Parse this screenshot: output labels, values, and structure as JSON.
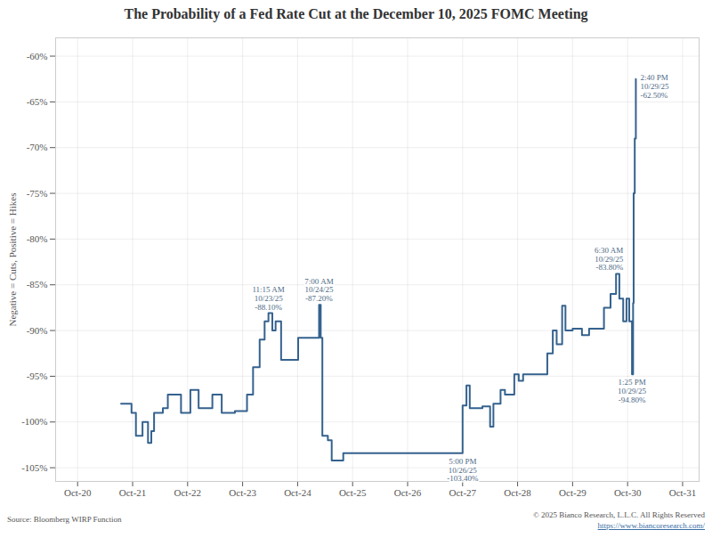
{
  "chart_data": {
    "type": "line",
    "title": "The Probability of a Fed Rate Cut at the December 10, 2025 FOMC Meeting",
    "y_label": "Negative = Cuts, Positive = Hikes",
    "source": "Source: Bloomberg WIRP Function",
    "copyright": "© 2025 Bianco Research, L.L.C. All Rights Reserved",
    "url": "https://www.biancoresearch.com/",
    "color": "#35628e",
    "line_style": "step",
    "grid": true,
    "x": [
      20.79,
      20.98,
      21.06,
      21.18,
      21.28,
      21.34,
      21.39,
      21.55,
      21.64,
      21.88,
      22.05,
      22.2,
      22.45,
      22.62,
      22.86,
      23.08,
      23.19,
      23.31,
      23.4,
      23.47,
      23.54,
      23.6,
      23.7,
      23.93,
      24.01,
      24.34,
      24.39,
      24.42,
      24.45,
      24.55,
      24.62,
      24.83,
      27.0,
      27.07,
      27.13,
      27.36,
      27.5,
      27.56,
      27.69,
      27.77,
      27.94,
      28.02,
      28.1,
      28.48,
      28.54,
      28.64,
      28.71,
      28.81,
      28.87,
      29.0,
      29.17,
      29.3,
      29.49,
      29.57,
      29.69,
      29.79,
      29.85,
      29.92,
      29.98,
      30.03,
      30.08,
      30.1,
      30.11,
      30.13,
      30.15
    ],
    "values": [
      -98,
      -99,
      -101.5,
      -100,
      -102.3,
      -101,
      -99,
      -98.5,
      -97,
      -99,
      -96.5,
      -98.5,
      -97,
      -99,
      -98.8,
      -97,
      -94,
      -91,
      -89,
      -88.1,
      -90,
      -89,
      -93.2,
      -93.2,
      -90.8,
      -90.8,
      -87.2,
      -90.8,
      -101.5,
      -102,
      -104.2,
      -103.4,
      -98.2,
      -96,
      -98.5,
      -98.3,
      -100.5,
      -98,
      -96.5,
      -97,
      -94.8,
      -95.5,
      -94.8,
      -94.8,
      -92.5,
      -90,
      -91.5,
      -87.3,
      -90,
      -89.8,
      -90.5,
      -89.8,
      -89.8,
      -87.5,
      -86,
      -83.8,
      -86.5,
      -89,
      -86.5,
      -89,
      -94.8,
      -87,
      -75,
      -69,
      -62.5
    ],
    "xlim": [
      19.6,
      31.3
    ],
    "xticks": [
      {
        "value": 20,
        "label": "Oct-20"
      },
      {
        "value": 21,
        "label": "Oct-21"
      },
      {
        "value": 22,
        "label": "Oct-22"
      },
      {
        "value": 23,
        "label": "Oct-23"
      },
      {
        "value": 24,
        "label": "Oct-24"
      },
      {
        "value": 25,
        "label": "Oct-25"
      },
      {
        "value": 26,
        "label": "Oct-26"
      },
      {
        "value": 27,
        "label": "Oct-27"
      },
      {
        "value": 28,
        "label": "Oct-28"
      },
      {
        "value": 29,
        "label": "Oct-29"
      },
      {
        "value": 30,
        "label": "Oct-30"
      },
      {
        "value": 31,
        "label": "Oct-31"
      }
    ],
    "ylim": [
      -106.5,
      -58
    ],
    "yticks": [
      {
        "value": -105,
        "label": "-105%"
      },
      {
        "value": -100,
        "label": "-100%"
      },
      {
        "value": -95,
        "label": "-95%"
      },
      {
        "value": -90,
        "label": "-90%"
      },
      {
        "value": -85,
        "label": "-85%"
      },
      {
        "value": -80,
        "label": "-80%"
      },
      {
        "value": -75,
        "label": "-75%"
      },
      {
        "value": -70,
        "label": "-70%"
      },
      {
        "value": -65,
        "label": "-65%"
      },
      {
        "value": -60,
        "label": "-60%"
      }
    ],
    "annotations": [
      {
        "text": "11:15 AM\n10/23/25\n-88.10%",
        "x": 23.47,
        "y": -88.1
      },
      {
        "text": "7:00 AM\n10/24/25\n-87.20%",
        "x": 24.39,
        "y": -87.2
      },
      {
        "text": "5:00 PM\n10/26/25\n-103.40%",
        "x": 27.0,
        "y": -103.4
      },
      {
        "text": "6:30 AM\n10/29/25\n-83.80%",
        "x": 29.79,
        "y": -83.8
      },
      {
        "text": "1:25 PM\n10/29/25\n-94.80%",
        "x": 30.08,
        "y": -94.8
      },
      {
        "text": "2:40 PM\n10/29/25\n-62.50%",
        "x": 30.15,
        "y": -62.5
      }
    ]
  }
}
